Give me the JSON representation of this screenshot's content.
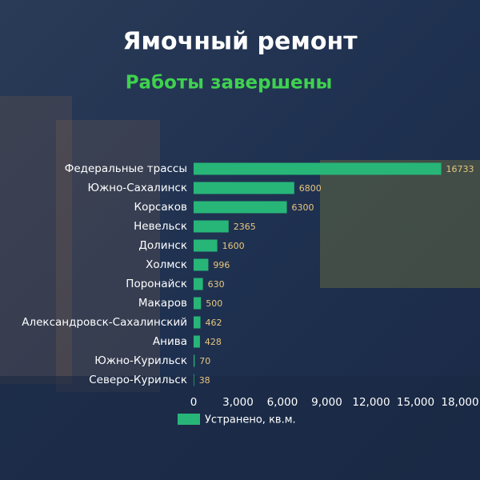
{
  "chart_data": {
    "type": "barh",
    "title": "Ямочный ремонт",
    "subtitle": "Работы завершены",
    "categories": [
      "Федеральные трассы",
      "Южно-Сахалинск",
      "Корсаков",
      "Невельск",
      "Долинск",
      "Холмск",
      "Поронайск",
      "Макаров",
      "Александровск-Сахалинский",
      "Анива",
      "Южно-Курильск",
      "Северо-Курильск"
    ],
    "series": [
      {
        "name": "Устранено, кв.м.",
        "color": "#27b678",
        "values": [
          16733,
          6800,
          6300,
          2365,
          1600,
          996,
          630,
          500,
          462,
          428,
          70,
          38
        ]
      }
    ],
    "xlim": [
      0,
      18000
    ],
    "xticks": [
      0,
      {
        "value": 3000,
        "label": "3,000"
      },
      {
        "value": 6000,
        "label": "6,000"
      },
      {
        "value": 9000,
        "label": "9,000"
      },
      {
        "value": 12000,
        "label": "12,000"
      },
      {
        "value": 15000,
        "label": "15,000"
      },
      {
        "value": 18000,
        "label": "18,000"
      }
    ],
    "value_label_color": "#e9c77e"
  }
}
